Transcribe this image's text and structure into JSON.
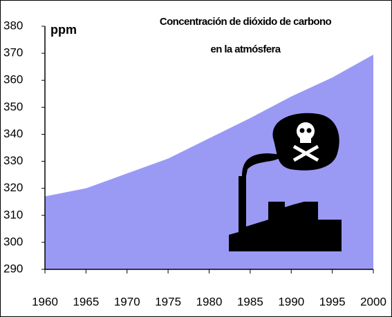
{
  "chart_data": {
    "type": "area",
    "title": [
      "Concentración de dióxido de carbono",
      "en la atmósfera"
    ],
    "y_label": "ppm",
    "x": [
      1960,
      1965,
      1970,
      1975,
      1980,
      1985,
      1990,
      1995,
      2000
    ],
    "series": [
      {
        "color": "#9a9af5",
        "values": [
          317,
          320,
          325.5,
          331,
          338.5,
          346,
          354,
          361,
          369.5
        ]
      }
    ],
    "xlim": [
      1960,
      2000
    ],
    "xticks": [
      1960,
      1965,
      1970,
      1975,
      1980,
      1985,
      1990,
      1995,
      2000
    ],
    "ylim": [
      290,
      380
    ],
    "yticks": [
      290,
      300,
      310,
      320,
      330,
      340,
      350,
      360,
      370,
      380
    ],
    "grid": false
  }
}
